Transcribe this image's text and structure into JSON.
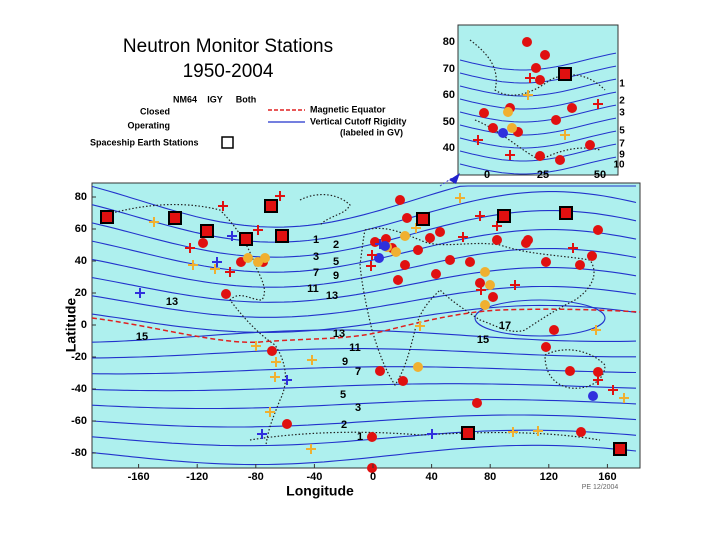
{
  "title": {
    "line1": "Neutron Monitor Stations",
    "line2": "1950-2004"
  },
  "legend": {
    "columns": [
      "NM64",
      "IGY",
      "Both"
    ],
    "rows": [
      "Closed",
      "Operating"
    ],
    "magnetic_equator": "Magnetic Equator",
    "cutoff": "Vertical Cutoff Rigidity",
    "cutoff_unit": "(labeled in GV)",
    "spaceship": "Spaceship Earth Stations"
  },
  "map": {
    "y_label": "Latitude",
    "x_label": "Longitude",
    "lon_ticks": [
      -160,
      -120,
      -80,
      -40,
      0,
      40,
      80,
      120,
      160
    ],
    "lat_ticks": [
      80,
      60,
      40,
      20,
      0,
      -20,
      -40,
      -60,
      -80
    ],
    "contour_labels": [
      1,
      2,
      3,
      5,
      7,
      9,
      11,
      13,
      13,
      15,
      13,
      11,
      9,
      7,
      5,
      3,
      2,
      1,
      17,
      15
    ],
    "credit": "PE 12/2004"
  },
  "inset": {
    "lat_ticks": [
      80,
      70,
      60,
      50,
      40
    ],
    "lon_ticks": [
      0,
      25,
      50
    ],
    "contour_labels": [
      1,
      2,
      3,
      5,
      7,
      9,
      10
    ]
  }
}
